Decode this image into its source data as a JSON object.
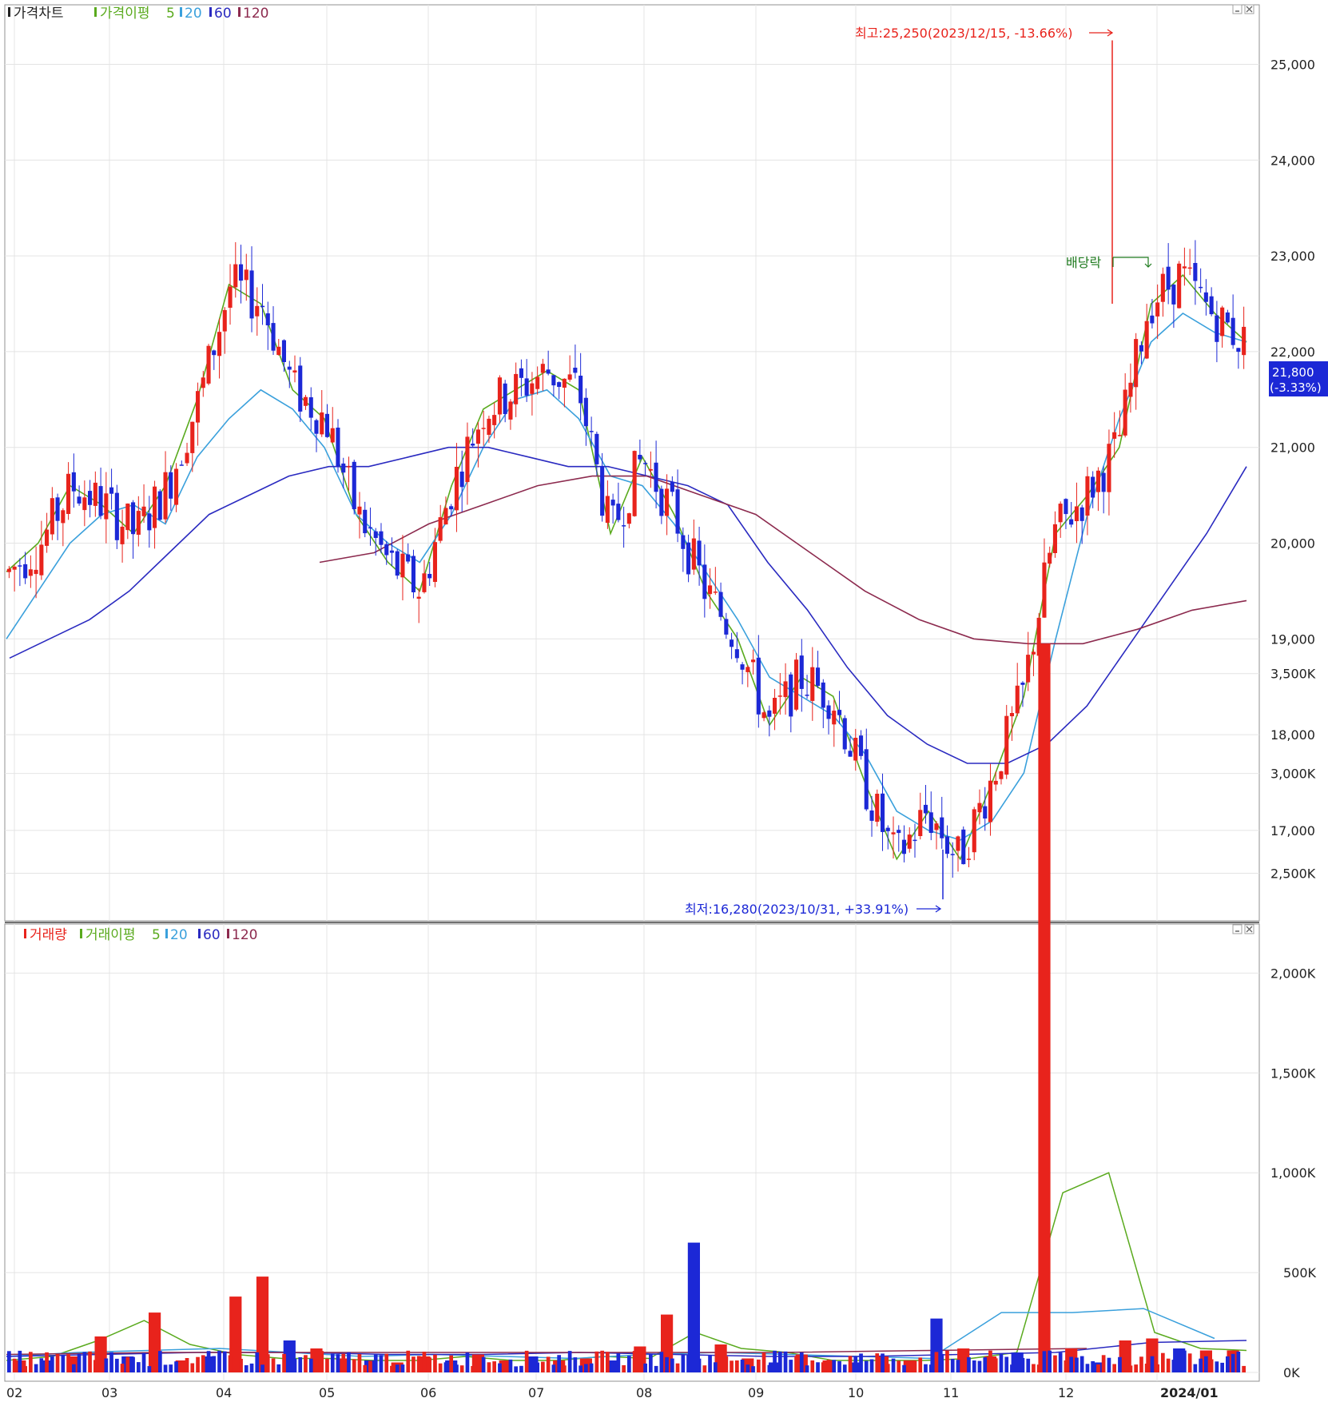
{
  "legend_price": {
    "title": "가격차트",
    "ma_label": "가격이평",
    "ma5": "5",
    "ma20": "20",
    "ma60": "60",
    "ma120": "120"
  },
  "legend_volume": {
    "title": "거래량",
    "ma_label": "거래이평",
    "ma5": "5",
    "ma20": "20",
    "ma60": "60",
    "ma120": "120"
  },
  "annotations": {
    "high": "최고:25,250(2023/12/15, -13.66%)",
    "low": "최저:16,280(2023/10/31, +33.91%)",
    "dividend": "배당락",
    "current_price": "21,800",
    "current_change": "(-3.33%)"
  },
  "colors": {
    "up": "#e8231c",
    "down": "#1c28d6",
    "ma5": "#5aaa1e",
    "ma20": "#3aa0dc",
    "ma60": "#2a2ac0",
    "ma120": "#8c2a4e",
    "grid": "#e4e4e4",
    "annotation_red": "#e8231c",
    "annotation_green": "#1e7a1e"
  },
  "chart_data": [
    {
      "type": "candlestick",
      "title": "가격차트",
      "x_tick_labels": [
        "02",
        "03",
        "04",
        "05",
        "06",
        "07",
        "08",
        "09",
        "10",
        "11",
        "12",
        "2024/01"
      ],
      "y_tick_labels": [
        "17,000",
        "18,000",
        "19,000",
        "20,000",
        "21,000",
        "22,000",
        "23,000",
        "24,000",
        "25,000"
      ],
      "ylim": [
        16100,
        25700
      ],
      "series": [
        {
          "name": "5",
          "values": [
            19700,
            20000,
            20600,
            20400,
            20100,
            20600,
            21500,
            22700,
            22500,
            21600,
            21300,
            20300,
            19800,
            19500,
            20600,
            21400,
            21600,
            21800,
            21600,
            20100,
            20900,
            20300,
            19500,
            19000,
            18100,
            18600,
            18400,
            17500,
            16700,
            17200,
            16700,
            17500,
            18400,
            20100,
            20500,
            21000,
            22500,
            22800,
            22400,
            22100
          ]
        },
        {
          "name": "20",
          "values": [
            19000,
            19500,
            20000,
            20300,
            20400,
            20200,
            20900,
            21300,
            21600,
            21400,
            21000,
            20300,
            20000,
            19800,
            20300,
            21000,
            21500,
            21600,
            21300,
            20700,
            20600,
            20200,
            19700,
            19200,
            18600,
            18400,
            18200,
            17800,
            17200,
            17000,
            16900,
            17100,
            17600,
            19000,
            20300,
            21300,
            22100,
            22400,
            22200,
            22100
          ]
        },
        {
          "name": "60",
          "values": [
            18800,
            19000,
            19200,
            19500,
            19900,
            20300,
            20500,
            20700,
            20800,
            20800,
            20900,
            21000,
            21000,
            20900,
            20800,
            20800,
            20700,
            20600,
            20400,
            19800,
            19300,
            18700,
            18200,
            17900,
            17700,
            17700,
            17900,
            18300,
            18900,
            19500,
            20100,
            20800
          ]
        },
        {
          "name": "120",
          "values": [
            19800,
            19900,
            20200,
            20400,
            20600,
            20700,
            20700,
            20500,
            20300,
            19900,
            19500,
            19200,
            19000,
            18950,
            18950,
            19100,
            19300,
            19400
          ]
        }
      ],
      "annotations": [
        "최고:25,250(2023/12/15, -13.66%)",
        "최저:16,280(2023/10/31, +33.91%)",
        "배당락",
        "21,800",
        "(-3.33%)"
      ]
    },
    {
      "type": "bar",
      "title": "거래량",
      "x_tick_labels": [
        "02",
        "03",
        "04",
        "05",
        "06",
        "07",
        "08",
        "09",
        "10",
        "11",
        "12",
        "2024/01"
      ],
      "y_tick_labels": [
        "0K",
        "500K",
        "1,000K",
        "1,500K",
        "2,000K",
        "2,500K",
        "3,000K",
        "3,500K"
      ],
      "ylim": [
        0,
        3800
      ],
      "unit": "K",
      "values": [
        60,
        60,
        80,
        180,
        80,
        300,
        60,
        80,
        380,
        480,
        160,
        120,
        70,
        60,
        50,
        80,
        60,
        90,
        60,
        80,
        60,
        70,
        60,
        130,
        290,
        650,
        140,
        70,
        50,
        90,
        60,
        50,
        80,
        60,
        270,
        120,
        80,
        100,
        3650,
        120,
        50,
        160,
        170,
        120,
        110,
        110
      ],
      "series": [
        {
          "name": "5",
          "values": [
            60,
            80,
            160,
            260,
            140,
            90,
            70,
            70,
            60,
            60,
            80,
            60,
            60,
            80,
            70,
            200,
            120,
            100,
            60,
            60,
            60,
            70,
            100,
            900,
            1000,
            200,
            120,
            110
          ]
        },
        {
          "name": "20",
          "values": [
            80,
            100,
            110,
            120,
            100,
            80,
            90,
            80,
            70,
            90,
            100,
            90,
            80,
            70,
            300,
            300,
            320,
            170
          ]
        },
        {
          "name": "60",
          "values": [
            80,
            90,
            100,
            100,
            90,
            90,
            100,
            90,
            80,
            80,
            90,
            100,
            150,
            160
          ]
        },
        {
          "name": "120",
          "values": [
            90,
            100,
            100,
            100,
            100,
            100,
            110,
            120
          ]
        }
      ]
    }
  ]
}
